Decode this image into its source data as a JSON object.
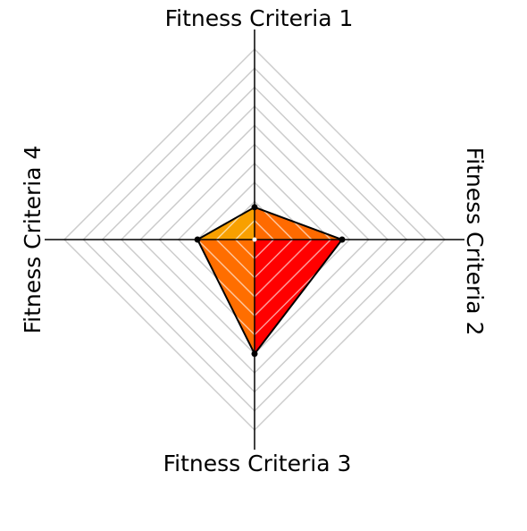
{
  "chart_data": {
    "type": "radar",
    "categories": [
      "Fitness Criteria 1",
      "Fitness Criteria 2",
      "Fitness Criteria 3",
      "Fitness Criteria 4"
    ],
    "values": [
      1.7,
      4.6,
      6.0,
      3.0
    ],
    "sector_colors": [
      "#ff6a00",
      "#ff0000",
      "#ff6e00",
      "#f8a000"
    ],
    "rlim": [
      0,
      10
    ],
    "rticks": [
      1,
      2,
      3,
      4,
      5,
      6,
      7,
      8,
      9,
      10
    ],
    "grid": true
  }
}
